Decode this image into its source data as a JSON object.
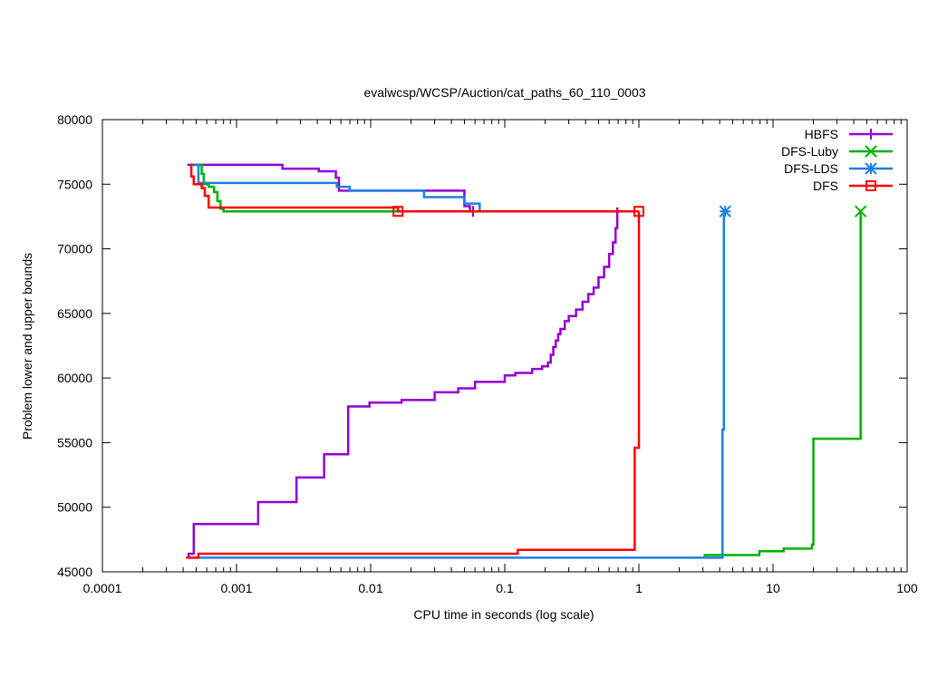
{
  "chart_data": {
    "type": "line",
    "title": "evalwcsp/WCSP/Auction/cat_paths_60_110_0003",
    "xlabel": "CPU time in seconds (log scale)",
    "ylabel": "Problem lower and upper bounds",
    "xscale": "log",
    "xlim": [
      0.0001,
      100
    ],
    "ylim": [
      45000,
      80000
    ],
    "xticks": [
      {
        "value": 0.0001,
        "label": "0.0001"
      },
      {
        "value": 0.001,
        "label": "0.001"
      },
      {
        "value": 0.01,
        "label": "0.01"
      },
      {
        "value": 0.1,
        "label": "0.1"
      },
      {
        "value": 1,
        "label": "1"
      },
      {
        "value": 10,
        "label": "10"
      },
      {
        "value": 100,
        "label": "100"
      }
    ],
    "yticks": [
      {
        "value": 45000,
        "label": "45000"
      },
      {
        "value": 50000,
        "label": "50000"
      },
      {
        "value": 55000,
        "label": "55000"
      },
      {
        "value": 60000,
        "label": "60000"
      },
      {
        "value": 65000,
        "label": "65000"
      },
      {
        "value": 70000,
        "label": "70000"
      },
      {
        "value": 75000,
        "label": "75000"
      },
      {
        "value": 80000,
        "label": "80000"
      }
    ],
    "legend_position": "top-right",
    "series": [
      {
        "name": "HBFS",
        "color": "#9400d3",
        "marker": "plus",
        "upper": [
          [
            0.00043,
            76500
          ],
          [
            0.0022,
            76500
          ],
          [
            0.0022,
            76200
          ],
          [
            0.0041,
            76200
          ],
          [
            0.0041,
            76000
          ],
          [
            0.0055,
            76000
          ],
          [
            0.0055,
            75500
          ],
          [
            0.0058,
            75500
          ],
          [
            0.0058,
            74500
          ],
          [
            0.05,
            74500
          ],
          [
            0.05,
            73300
          ],
          [
            0.055,
            73300
          ],
          [
            0.055,
            72900
          ],
          [
            0.058,
            72900
          ]
        ],
        "lower": [
          [
            0.00044,
            46100
          ],
          [
            0.00044,
            46400
          ],
          [
            0.00048,
            46400
          ],
          [
            0.00048,
            48700
          ],
          [
            0.00145,
            48700
          ],
          [
            0.00145,
            50400
          ],
          [
            0.0028,
            50400
          ],
          [
            0.0028,
            52300
          ],
          [
            0.0045,
            52300
          ],
          [
            0.0045,
            54100
          ],
          [
            0.0068,
            54100
          ],
          [
            0.0068,
            57800
          ],
          [
            0.0098,
            57800
          ],
          [
            0.0098,
            58100
          ],
          [
            0.017,
            58100
          ],
          [
            0.017,
            58300
          ],
          [
            0.03,
            58300
          ],
          [
            0.03,
            58900
          ],
          [
            0.045,
            58900
          ],
          [
            0.045,
            59200
          ],
          [
            0.06,
            59200
          ],
          [
            0.06,
            59700
          ],
          [
            0.1,
            59700
          ],
          [
            0.1,
            60200
          ],
          [
            0.12,
            60200
          ],
          [
            0.12,
            60400
          ],
          [
            0.16,
            60400
          ],
          [
            0.16,
            60700
          ],
          [
            0.19,
            60700
          ],
          [
            0.19,
            60900
          ],
          [
            0.21,
            60900
          ],
          [
            0.21,
            61200
          ],
          [
            0.22,
            61200
          ],
          [
            0.22,
            61800
          ],
          [
            0.23,
            61800
          ],
          [
            0.23,
            62400
          ],
          [
            0.24,
            62400
          ],
          [
            0.24,
            62900
          ],
          [
            0.25,
            62900
          ],
          [
            0.25,
            63400
          ],
          [
            0.26,
            63400
          ],
          [
            0.26,
            63800
          ],
          [
            0.28,
            63800
          ],
          [
            0.28,
            64400
          ],
          [
            0.3,
            64400
          ],
          [
            0.3,
            64800
          ],
          [
            0.34,
            64800
          ],
          [
            0.34,
            65300
          ],
          [
            0.38,
            65300
          ],
          [
            0.38,
            65900
          ],
          [
            0.42,
            65900
          ],
          [
            0.42,
            66500
          ],
          [
            0.46,
            66500
          ],
          [
            0.46,
            67000
          ],
          [
            0.5,
            67000
          ],
          [
            0.5,
            67800
          ],
          [
            0.55,
            67800
          ],
          [
            0.55,
            68600
          ],
          [
            0.6,
            68600
          ],
          [
            0.6,
            69600
          ],
          [
            0.64,
            69600
          ],
          [
            0.64,
            70500
          ],
          [
            0.67,
            70500
          ],
          [
            0.67,
            71600
          ],
          [
            0.69,
            71600
          ],
          [
            0.69,
            73200
          ]
        ],
        "end_marker": [
          0.058,
          72900
        ]
      },
      {
        "name": "DFS-Luby",
        "color": "#00b000",
        "marker": "cross",
        "upper": [
          [
            0.00048,
            76500
          ],
          [
            0.00055,
            76500
          ],
          [
            0.00055,
            75800
          ],
          [
            0.00057,
            75800
          ],
          [
            0.00057,
            75000
          ],
          [
            0.00062,
            75000
          ],
          [
            0.00062,
            74800
          ],
          [
            0.00068,
            74800
          ],
          [
            0.00068,
            74400
          ],
          [
            0.00072,
            74400
          ],
          [
            0.00072,
            73700
          ],
          [
            0.00076,
            73700
          ],
          [
            0.00076,
            73100
          ],
          [
            0.0008,
            73100
          ],
          [
            0.0008,
            72900
          ],
          [
            0.016,
            72900
          ]
        ],
        "lower": [
          [
            3.1,
            46200
          ],
          [
            3.1,
            46300
          ],
          [
            7.9,
            46300
          ],
          [
            7.9,
            46600
          ],
          [
            12,
            46600
          ],
          [
            12,
            46800
          ],
          [
            19.5,
            46800
          ],
          [
            19.5,
            47100
          ],
          [
            20,
            47100
          ],
          [
            20,
            55300
          ],
          [
            45,
            55300
          ],
          [
            45,
            72900
          ]
        ],
        "end_marker": [
          45,
          72900
        ]
      },
      {
        "name": "DFS-LDS",
        "color": "#1e7fe0",
        "marker": "star",
        "upper": [
          [
            0.00048,
            76500
          ],
          [
            0.00052,
            76500
          ],
          [
            0.00052,
            75100
          ],
          [
            0.0056,
            75100
          ],
          [
            0.0056,
            74800
          ],
          [
            0.007,
            74800
          ],
          [
            0.007,
            74500
          ],
          [
            0.025,
            74500
          ],
          [
            0.025,
            74000
          ],
          [
            0.05,
            74000
          ],
          [
            0.05,
            73500
          ],
          [
            0.065,
            73500
          ],
          [
            0.065,
            72900
          ],
          [
            0.08,
            72900
          ]
        ],
        "lower": [
          [
            0.00048,
            46100
          ],
          [
            4.2,
            46100
          ],
          [
            4.2,
            56000
          ],
          [
            4.3,
            56000
          ],
          [
            4.3,
            72900
          ],
          [
            4.4,
            72900
          ]
        ],
        "end_marker": [
          4.4,
          72900
        ]
      },
      {
        "name": "DFS",
        "color": "#ff0000",
        "marker": "square",
        "upper": [
          [
            0.00045,
            76500
          ],
          [
            0.00046,
            76500
          ],
          [
            0.00046,
            75600
          ],
          [
            0.00048,
            75600
          ],
          [
            0.00048,
            75000
          ],
          [
            0.00055,
            75000
          ],
          [
            0.00055,
            74700
          ],
          [
            0.00058,
            74700
          ],
          [
            0.00058,
            74100
          ],
          [
            0.00062,
            74100
          ],
          [
            0.00062,
            73200
          ],
          [
            0.016,
            73200
          ],
          [
            0.016,
            72900
          ],
          [
            1,
            72900
          ]
        ],
        "lower": [
          [
            0.00042,
            46100
          ],
          [
            0.00052,
            46100
          ],
          [
            0.00052,
            46400
          ],
          [
            0.125,
            46400
          ],
          [
            0.125,
            46700
          ],
          [
            0.93,
            46700
          ],
          [
            0.93,
            54600
          ],
          [
            1,
            54600
          ],
          [
            1,
            72900
          ]
        ],
        "end_marker": [
          1,
          72900
        ],
        "extra_markers": [
          [
            0.016,
            72900
          ]
        ]
      }
    ]
  }
}
